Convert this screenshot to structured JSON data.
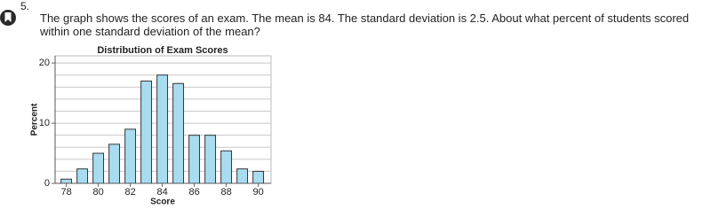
{
  "question": {
    "number": "5.",
    "text": "The graph shows the scores of an exam. The mean is 84. The standard deviation is 2.5. About what percent of students scored within one standard deviation of the mean?"
  },
  "chart_data": {
    "type": "bar",
    "title": "Distribution of Exam Scores",
    "x_label": "Score",
    "y_label": "Percent",
    "x": [
      78,
      79,
      80,
      81,
      82,
      83,
      84,
      85,
      86,
      87,
      88,
      89,
      90
    ],
    "values": [
      0.7,
      2.4,
      5,
      6.5,
      9,
      17,
      18,
      16.6,
      8,
      8,
      5.4,
      2.4,
      2
    ],
    "color": "#a9dcf0",
    "edge_color": "#333333",
    "xlim": [
      77.3,
      90.8
    ],
    "xticks": [
      78,
      80,
      82,
      84,
      86,
      88,
      90
    ],
    "ylim": [
      0,
      21.2
    ],
    "yticks": [
      0,
      10,
      20
    ],
    "grid_yticks": [
      2,
      4,
      6,
      8,
      10,
      12,
      14,
      16,
      18,
      20
    ],
    "grid": true
  }
}
